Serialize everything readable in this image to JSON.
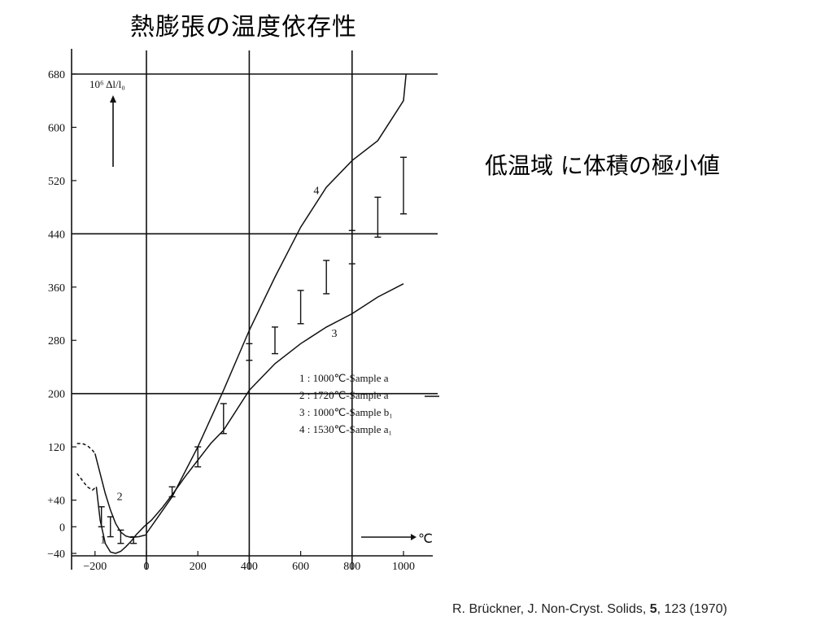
{
  "slide": {
    "title": "熱膨張の温度依存性",
    "side_note": "低温域 に体積の極小値",
    "citation": {
      "authors": "R. Brückner, J. Non-Cryst. Solids, ",
      "volume": "5",
      "rest": ", 123 (1970)"
    }
  },
  "chart_data": {
    "type": "line",
    "title": "",
    "ylabel": "10⁶ Δl/l₀",
    "xlabel": "℃",
    "xlim": [
      -260,
      1100
    ],
    "ylim": [
      -40,
      680
    ],
    "x_ticks": [
      -200,
      0,
      200,
      400,
      600,
      800,
      1000
    ],
    "x_tick_labels": [
      "−200",
      "0",
      "200",
      "400",
      "600",
      "800",
      "1000"
    ],
    "y_ticks": [
      -40,
      0,
      40,
      120,
      200,
      280,
      360,
      440,
      520,
      600,
      680
    ],
    "y_tick_labels": [
      "−40",
      "0",
      "+40",
      "120",
      "200",
      "280",
      "360",
      "440",
      "520",
      "600",
      "680"
    ],
    "grid": {
      "vertical": [
        0,
        400,
        800
      ],
      "horizontal": [
        680,
        440,
        200
      ]
    },
    "legend": {
      "position": "center-right",
      "entries": [
        "1 : 1000℃-Sample a",
        "2 : 1720℃-Sample a",
        "3 : 1000℃-Sample b₁",
        "4 : 1530℃-Sample a₁"
      ]
    },
    "series": [
      {
        "name": "1",
        "style": "solid",
        "x": [
          -195,
          -180,
          -160,
          -140,
          -120,
          -100,
          -80,
          -60,
          -40,
          -10,
          20,
          60,
          100,
          150,
          200,
          250,
          300,
          400,
          500,
          600,
          700,
          800,
          900,
          1000
        ],
        "y": [
          60,
          10,
          -25,
          -38,
          -40,
          -37,
          -30,
          -22,
          -12,
          0,
          10,
          28,
          48,
          75,
          100,
          125,
          145,
          205,
          245,
          275,
          300,
          320,
          345,
          365
        ]
      },
      {
        "name": "1 (dashed)",
        "style": "dashed",
        "x": [
          -270,
          -250,
          -230,
          -210,
          -195
        ],
        "y": [
          80,
          70,
          60,
          55,
          60
        ]
      },
      {
        "name": "2",
        "style": "solid",
        "x": [
          -200,
          -180,
          -160,
          -140,
          -120,
          -100,
          -80,
          -60,
          -30,
          0
        ],
        "y": [
          110,
          80,
          50,
          25,
          5,
          -8,
          -14,
          -16,
          -15,
          -12
        ]
      },
      {
        "name": "2 (dashed)",
        "style": "dashed",
        "x": [
          -270,
          -250,
          -230,
          -210,
          -200
        ],
        "y": [
          125,
          125,
          122,
          115,
          110
        ]
      },
      {
        "name": "4",
        "style": "solid",
        "x": [
          0,
          100,
          200,
          300,
          400,
          500,
          600,
          700,
          800,
          900,
          950,
          1000,
          1010
        ],
        "y": [
          -10,
          45,
          120,
          205,
          295,
          375,
          450,
          510,
          550,
          580,
          610,
          640,
          680
        ]
      }
    ],
    "error_bars": [
      {
        "x": -175,
        "low": 0,
        "high": 30
      },
      {
        "x": -140,
        "low": -15,
        "high": 15
      },
      {
        "x": -100,
        "low": -25,
        "high": -5
      },
      {
        "x": -50,
        "low": -25,
        "high": -15
      },
      {
        "x": 100,
        "low": 45,
        "high": 60
      },
      {
        "x": 200,
        "low": 90,
        "high": 120
      },
      {
        "x": 300,
        "low": 140,
        "high": 185
      },
      {
        "x": 400,
        "low": 250,
        "high": 275
      },
      {
        "x": 500,
        "low": 260,
        "high": 300
      },
      {
        "x": 600,
        "low": 305,
        "high": 355
      },
      {
        "x": 700,
        "low": 350,
        "high": 400
      },
      {
        "x": 800,
        "low": 395,
        "high": 445
      },
      {
        "x": 900,
        "low": 435,
        "high": 495
      },
      {
        "x": 1000,
        "low": 470,
        "high": 555
      }
    ],
    "curve_labels": [
      {
        "text": "1",
        "x": -180,
        "y": -25
      },
      {
        "text": "2",
        "x": -115,
        "y": 40
      },
      {
        "text": "3",
        "x": 720,
        "y": 285
      },
      {
        "text": "4",
        "x": 650,
        "y": 500
      }
    ]
  }
}
